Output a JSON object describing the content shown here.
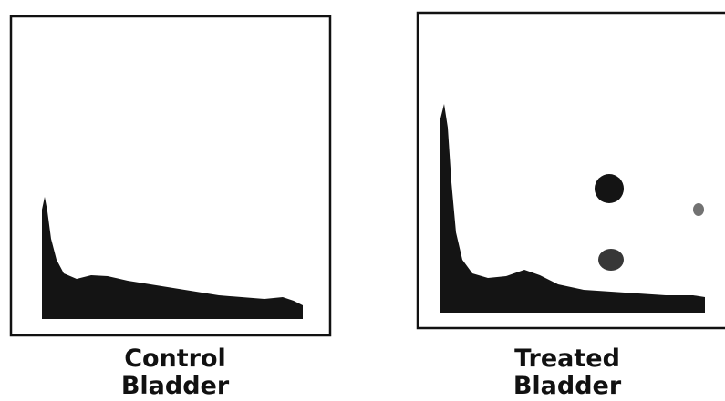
{
  "panels": [
    {
      "label": [
        "Control",
        "Bladder"
      ]
    },
    {
      "label": [
        "Treated",
        "Bladder"
      ]
    }
  ]
}
